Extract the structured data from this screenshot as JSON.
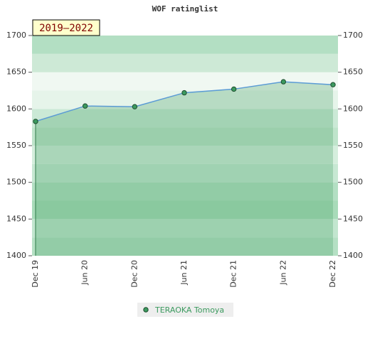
{
  "chart_data": {
    "type": "area",
    "title": "WOF ratinglist",
    "badge": "2019–2022",
    "categories": [
      "Dec 19",
      "Jun 20",
      "Dec 20",
      "Jun 21",
      "Dec 21",
      "Jun 22",
      "Dec 22"
    ],
    "series": [
      {
        "name": "TERAOKA Tomoya",
        "color": "#3c9a5f",
        "values": [
          1583,
          1604,
          1603,
          1622,
          1627,
          1637,
          1633
        ]
      }
    ],
    "ylim": [
      1400,
      1700
    ],
    "yticks": [
      1400,
      1450,
      1500,
      1550,
      1600,
      1650,
      1700
    ],
    "y2lim": [
      1400,
      1700
    ],
    "y2ticks": [
      1400,
      1450,
      1500,
      1550,
      1600,
      1650,
      1700
    ]
  }
}
